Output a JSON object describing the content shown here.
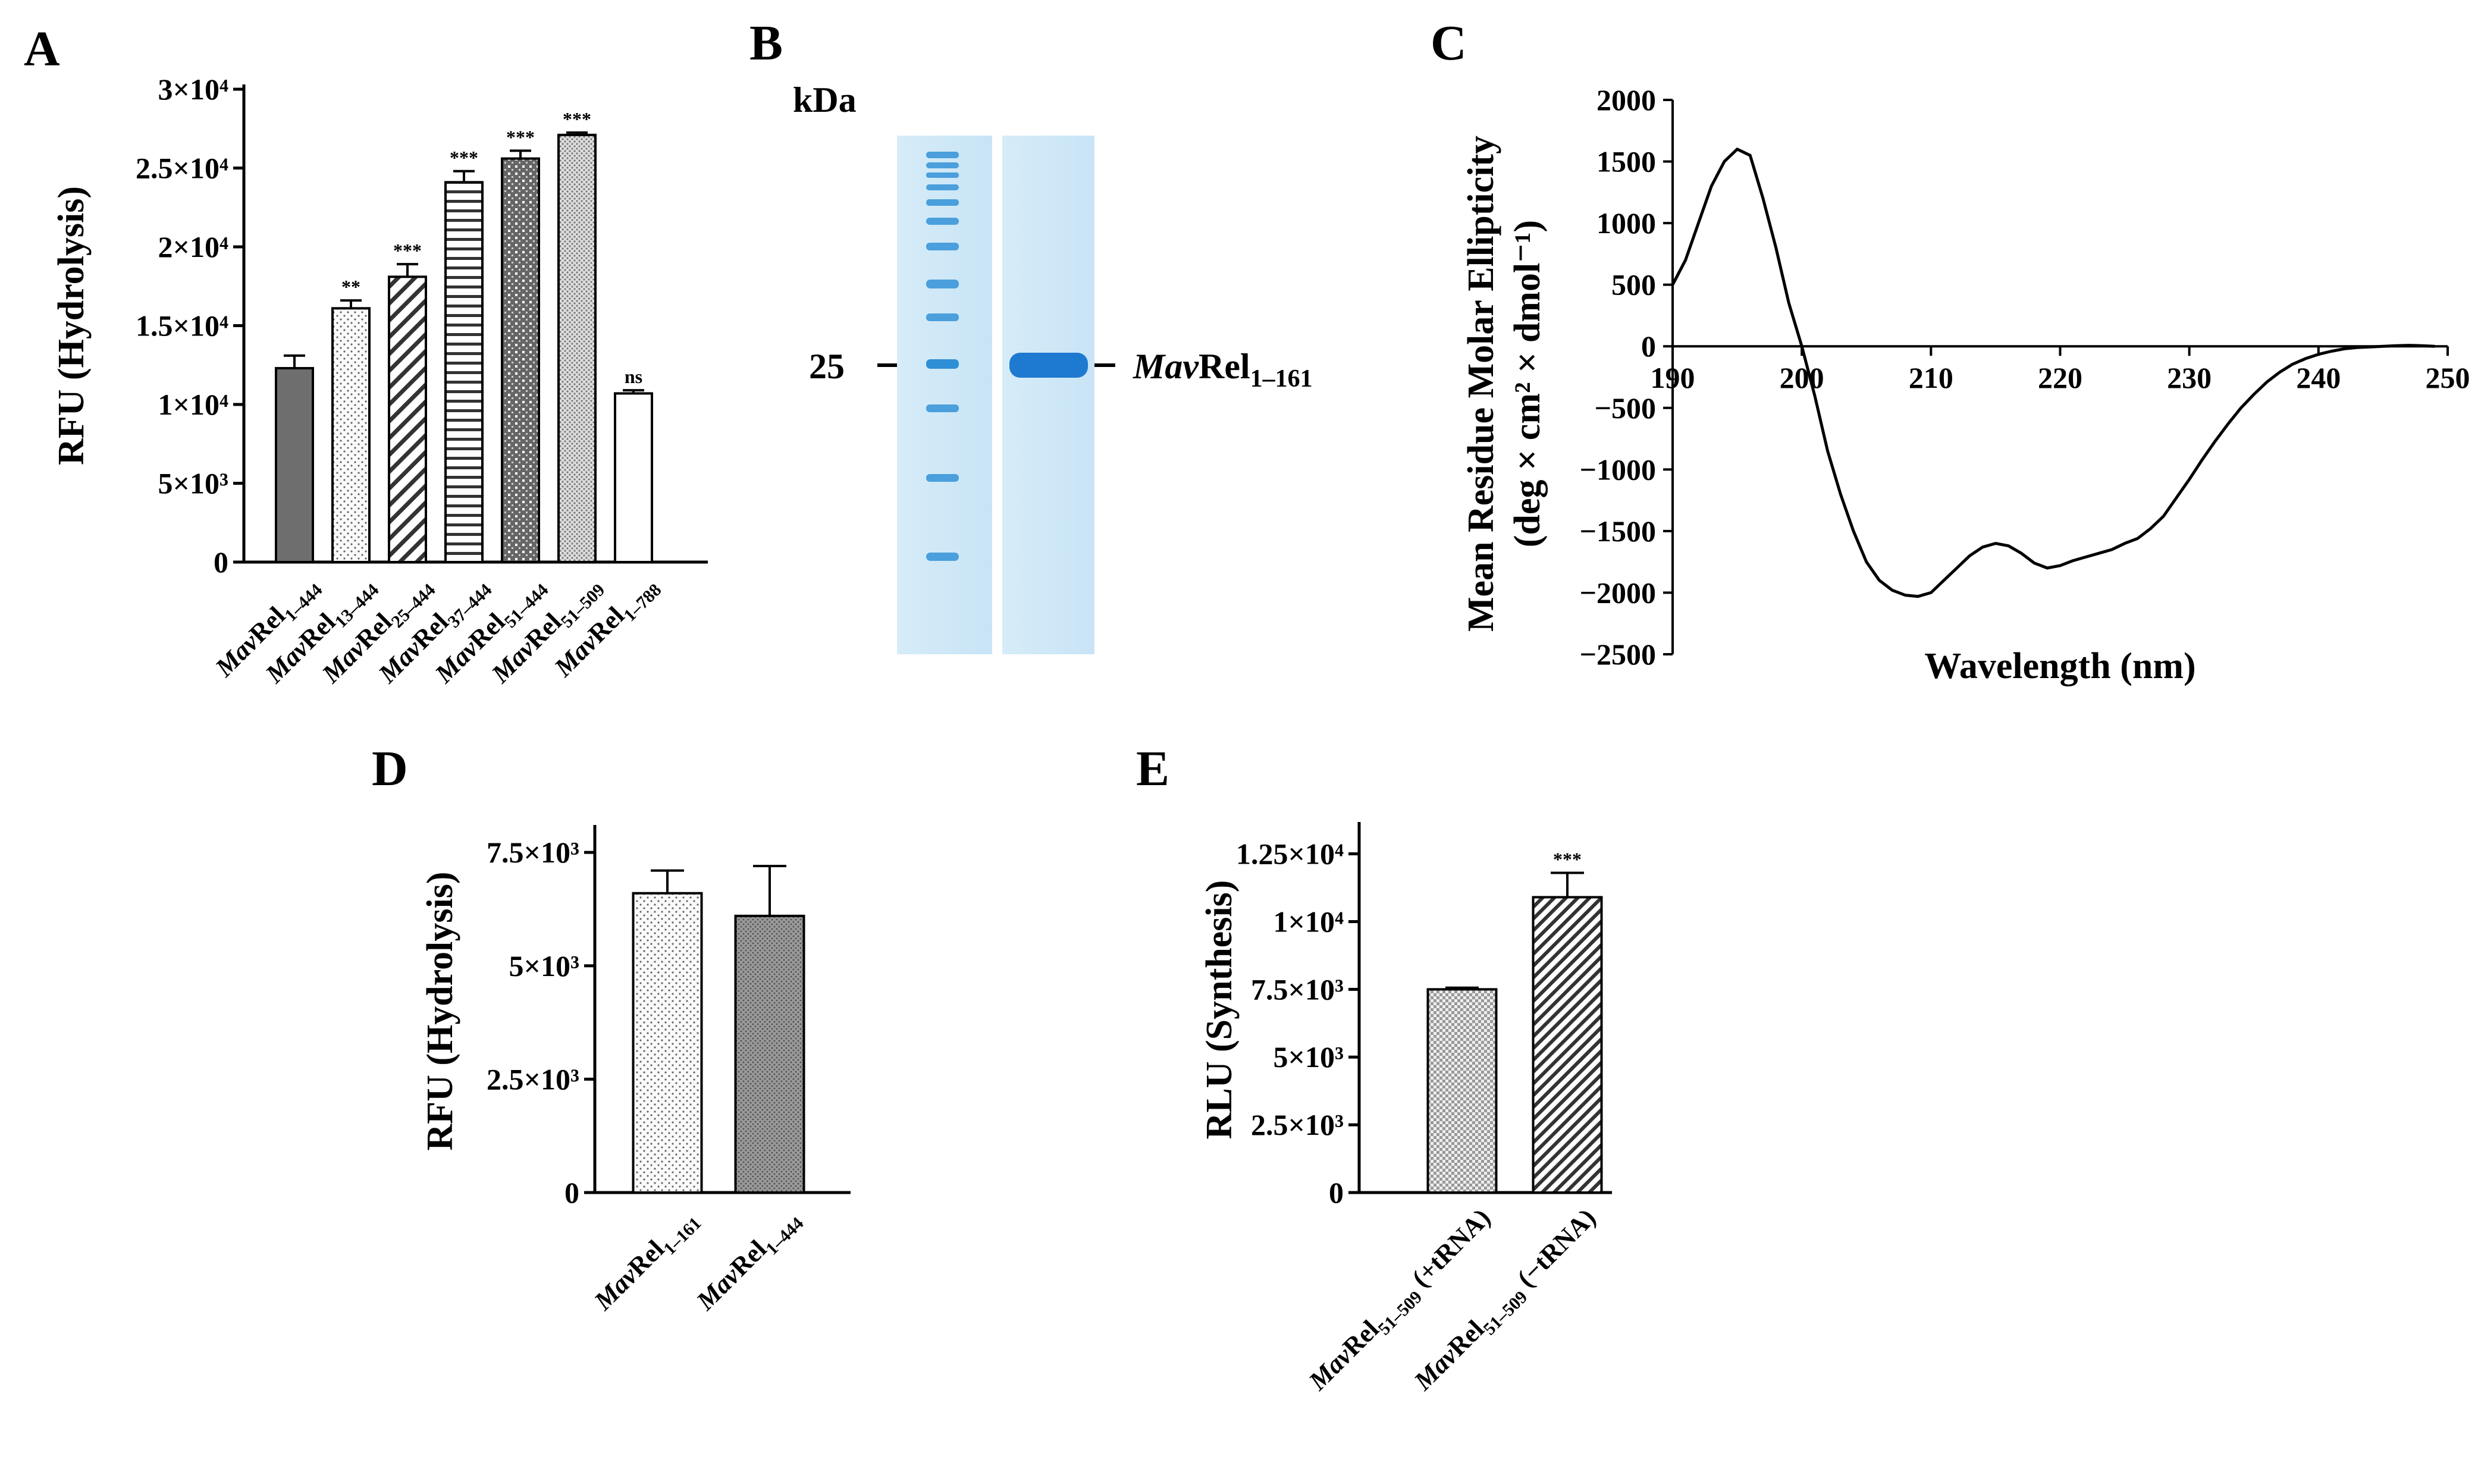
{
  "panels": [
    {
      "id": "A",
      "label": "A"
    },
    {
      "id": "B",
      "label": "B"
    },
    {
      "id": "C",
      "label": "C"
    },
    {
      "id": "D",
      "label": "D"
    },
    {
      "id": "E",
      "label": "E"
    }
  ],
  "gel": {
    "unit": "kDa",
    "marker": "25",
    "band_prefix": "Mav",
    "band_main": "Rel",
    "band_sub": "1–161"
  },
  "chart_data": [
    {
      "id": "A",
      "type": "bar",
      "title": "",
      "xlabel": "",
      "ylabel": "RFU (Hydrolysis)",
      "ylim": [
        0,
        30000
      ],
      "y_ticks": [
        "0",
        "5×10³",
        "1×10⁴",
        "1.5×10⁴",
        "2×10⁴",
        "2.5×10⁴",
        "3×10⁴"
      ],
      "categories": [
        {
          "prefix": "Mav",
          "main": "Rel",
          "sub": "1–444"
        },
        {
          "prefix": "Mav",
          "main": "Rel",
          "sub": "13–444"
        },
        {
          "prefix": "Mav",
          "main": "Rel",
          "sub": "25–444"
        },
        {
          "prefix": "Mav",
          "main": "Rel",
          "sub": "37–444"
        },
        {
          "prefix": "Mav",
          "main": "Rel",
          "sub": "51–444"
        },
        {
          "prefix": "Mav",
          "main": "Rel",
          "sub": "51–509"
        },
        {
          "prefix": "Mav",
          "main": "Rel",
          "sub": "1–788"
        }
      ],
      "values": [
        12300,
        16100,
        18100,
        24100,
        25600,
        27100,
        10700
      ],
      "errors": [
        800,
        500,
        800,
        700,
        500,
        150,
        200
      ],
      "significance": [
        "",
        "**",
        "***",
        "***",
        "***",
        "***",
        "ns"
      ],
      "fills": [
        "#6e6e6e",
        "dots",
        "diag",
        "hlines",
        "cross",
        "dots-dense",
        "white"
      ]
    },
    {
      "id": "C",
      "type": "line",
      "title": "",
      "xlabel": "Wavelength (nm)",
      "ylabel_line1": "Mean Residue Molar Ellipticity",
      "ylabel_line2": "(deg × cm² × dmol⁻¹)",
      "xlim": [
        190,
        250
      ],
      "ylim": [
        -2500,
        2000
      ],
      "x_ticks": [
        "190",
        "200",
        "210",
        "220",
        "230",
        "240",
        "250"
      ],
      "y_ticks": [
        "2000",
        "1500",
        "1000",
        "500",
        "0",
        "−500",
        "−1000",
        "−1500",
        "−2000",
        "−2500"
      ],
      "x": [
        190,
        191,
        192,
        193,
        194,
        195,
        196,
        197,
        198,
        199,
        200,
        201,
        202,
        203,
        204,
        205,
        206,
        207,
        208,
        209,
        210,
        211,
        212,
        213,
        214,
        215,
        216,
        217,
        218,
        219,
        220,
        221,
        222,
        223,
        224,
        225,
        226,
        227,
        228,
        229,
        230,
        231,
        232,
        233,
        234,
        235,
        236,
        237,
        238,
        239,
        240,
        241,
        242,
        243,
        244,
        245,
        246,
        247,
        248,
        249
      ],
      "y": [
        500,
        700,
        1000,
        1300,
        1500,
        1600,
        1550,
        1200,
        800,
        350,
        0,
        -400,
        -850,
        -1200,
        -1500,
        -1750,
        -1900,
        -1980,
        -2020,
        -2030,
        -2000,
        -1900,
        -1800,
        -1700,
        -1630,
        -1600,
        -1620,
        -1680,
        -1760,
        -1800,
        -1780,
        -1740,
        -1710,
        -1680,
        -1650,
        -1600,
        -1560,
        -1480,
        -1380,
        -1230,
        -1080,
        -920,
        -770,
        -630,
        -500,
        -390,
        -290,
        -210,
        -145,
        -100,
        -65,
        -40,
        -20,
        -10,
        -5,
        0,
        5,
        8,
        5,
        0
      ]
    },
    {
      "id": "D",
      "type": "bar",
      "title": "",
      "xlabel": "",
      "ylabel": "RFU (Hydrolysis)",
      "ylim": [
        0,
        8000
      ],
      "y_ticks": [
        "0",
        "2.5×10³",
        "5×10³",
        "7.5×10³"
      ],
      "categories": [
        {
          "prefix": "Mav",
          "main": "Rel",
          "sub": "1–161"
        },
        {
          "prefix": "Mav",
          "main": "Rel",
          "sub": "1–444"
        }
      ],
      "values": [
        6600,
        6100
      ],
      "errors": [
        500,
        1100
      ],
      "significance": [
        "",
        ""
      ],
      "fills": [
        "dots",
        "dots-dark"
      ]
    },
    {
      "id": "E",
      "type": "bar",
      "title": "",
      "xlabel": "",
      "ylabel": "RLU (Synthesis)",
      "ylim": [
        0,
        13500
      ],
      "y_ticks": [
        "0",
        "2.5×10³",
        "5×10³",
        "7.5×10³",
        "1×10⁴",
        "1.25×10⁴"
      ],
      "categories": [
        {
          "prefix": "Mav",
          "main": "Rel",
          "sub": "51–509",
          "suffix": " (+tRNA)"
        },
        {
          "prefix": "Mav",
          "main": "Rel",
          "sub": "51–509",
          "suffix": " (−tRNA)"
        }
      ],
      "values": [
        7500,
        10900
      ],
      "errors": [
        60,
        900
      ],
      "significance": [
        "",
        "***"
      ],
      "fills": [
        "checker",
        "diag-dense"
      ]
    }
  ]
}
